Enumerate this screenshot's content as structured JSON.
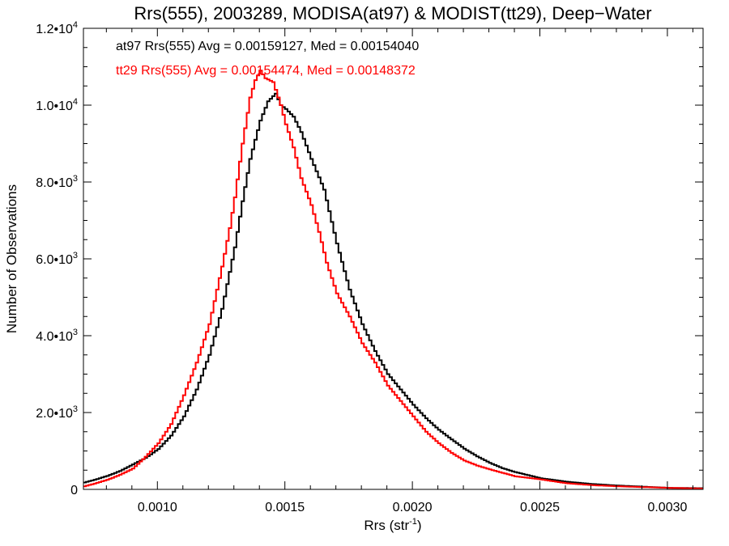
{
  "chart_data": {
    "type": "line",
    "title": "Rrs(555), 2003289, MODISA(at97) & MODIST(tt29), Deep−Water",
    "xlabel": "Rrs (str",
    "xlabel_sup": "-1",
    "xlabel_end": ")",
    "ylabel": "Number of Observations",
    "xlim": [
      0.00071,
      0.00314
    ],
    "ylim": [
      0,
      12000
    ],
    "x_ticks": [
      {
        "value": 0.001,
        "label": "0.0010"
      },
      {
        "value": 0.0015,
        "label": "0.0015"
      },
      {
        "value": 0.002,
        "label": "0.0020"
      },
      {
        "value": 0.0025,
        "label": "0.0025"
      },
      {
        "value": 0.003,
        "label": "0.0030"
      }
    ],
    "y_ticks": [
      {
        "value": 0,
        "label": "0",
        "sup": ""
      },
      {
        "value": 2000,
        "label": "2.0•10",
        "sup": "3"
      },
      {
        "value": 4000,
        "label": "4.0•10",
        "sup": "3"
      },
      {
        "value": 6000,
        "label": "6.0•10",
        "sup": "3"
      },
      {
        "value": 8000,
        "label": "8.0•10",
        "sup": "3"
      },
      {
        "value": 10000,
        "label": "1.0•10",
        "sup": "4"
      },
      {
        "value": 12000,
        "label": "1.2•10",
        "sup": "4"
      }
    ],
    "annotations": [
      "at97 Rrs(555) Avg = 0.00159127, Med = 0.00154040",
      "tt29 Rrs(555) Avg = 0.00154474, Med = 0.00148372"
    ],
    "grid": false,
    "series": [
      {
        "color": "#000000",
        "style": "step",
        "points": [
          [
            0.00071,
            180
          ],
          [
            0.00075,
            250
          ],
          [
            0.0008,
            350
          ],
          [
            0.00085,
            480
          ],
          [
            0.0009,
            650
          ],
          [
            0.00095,
            820
          ],
          [
            0.001,
            1050
          ],
          [
            0.00105,
            1400
          ],
          [
            0.0011,
            1900
          ],
          [
            0.00115,
            2600
          ],
          [
            0.0012,
            3500
          ],
          [
            0.00125,
            4700
          ],
          [
            0.0013,
            6300
          ],
          [
            0.00133,
            7500
          ],
          [
            0.00136,
            8600
          ],
          [
            0.0014,
            9600
          ],
          [
            0.00143,
            10100
          ],
          [
            0.00146,
            10300
          ],
          [
            0.00148,
            10000
          ],
          [
            0.0015,
            9900
          ],
          [
            0.00153,
            9700
          ],
          [
            0.00156,
            9300
          ],
          [
            0.0016,
            8600
          ],
          [
            0.00165,
            7800
          ],
          [
            0.0017,
            6400
          ],
          [
            0.00175,
            5200
          ],
          [
            0.0018,
            4300
          ],
          [
            0.00185,
            3600
          ],
          [
            0.0019,
            3000
          ],
          [
            0.00195,
            2600
          ],
          [
            0.002,
            2200
          ],
          [
            0.00205,
            1850
          ],
          [
            0.0021,
            1550
          ],
          [
            0.00215,
            1300
          ],
          [
            0.0022,
            1060
          ],
          [
            0.00225,
            860
          ],
          [
            0.0023,
            690
          ],
          [
            0.00235,
            550
          ],
          [
            0.0024,
            450
          ],
          [
            0.00245,
            370
          ],
          [
            0.0025,
            290
          ],
          [
            0.0026,
            200
          ],
          [
            0.0027,
            140
          ],
          [
            0.0028,
            100
          ],
          [
            0.0029,
            70
          ],
          [
            0.003,
            40
          ],
          [
            0.00314,
            30
          ]
        ]
      },
      {
        "color": "#ff0000",
        "style": "step",
        "points": [
          [
            0.00071,
            80
          ],
          [
            0.00075,
            150
          ],
          [
            0.0008,
            250
          ],
          [
            0.00085,
            380
          ],
          [
            0.0009,
            540
          ],
          [
            0.00095,
            850
          ],
          [
            0.001,
            1200
          ],
          [
            0.00105,
            1700
          ],
          [
            0.0011,
            2450
          ],
          [
            0.00115,
            3300
          ],
          [
            0.0012,
            4300
          ],
          [
            0.00125,
            5800
          ],
          [
            0.00128,
            6800
          ],
          [
            0.0013,
            7600
          ],
          [
            0.00133,
            9000
          ],
          [
            0.00136,
            10200
          ],
          [
            0.00138,
            10650
          ],
          [
            0.0014,
            10900
          ],
          [
            0.00142,
            10700
          ],
          [
            0.00145,
            10600
          ],
          [
            0.00148,
            10000
          ],
          [
            0.0015,
            9500
          ],
          [
            0.00153,
            8900
          ],
          [
            0.00156,
            8100
          ],
          [
            0.0016,
            7400
          ],
          [
            0.00163,
            6700
          ],
          [
            0.00166,
            5900
          ],
          [
            0.0017,
            5100
          ],
          [
            0.00175,
            4500
          ],
          [
            0.0018,
            3800
          ],
          [
            0.00185,
            3300
          ],
          [
            0.0019,
            2700
          ],
          [
            0.00195,
            2300
          ],
          [
            0.002,
            1900
          ],
          [
            0.00205,
            1500
          ],
          [
            0.0021,
            1200
          ],
          [
            0.00215,
            950
          ],
          [
            0.0022,
            750
          ],
          [
            0.00225,
            620
          ],
          [
            0.0023,
            520
          ],
          [
            0.00235,
            430
          ],
          [
            0.0024,
            340
          ],
          [
            0.0025,
            260
          ],
          [
            0.0026,
            160
          ],
          [
            0.0027,
            110
          ],
          [
            0.0028,
            80
          ],
          [
            0.0029,
            60
          ],
          [
            0.003,
            40
          ],
          [
            0.00314,
            20
          ]
        ]
      }
    ]
  }
}
